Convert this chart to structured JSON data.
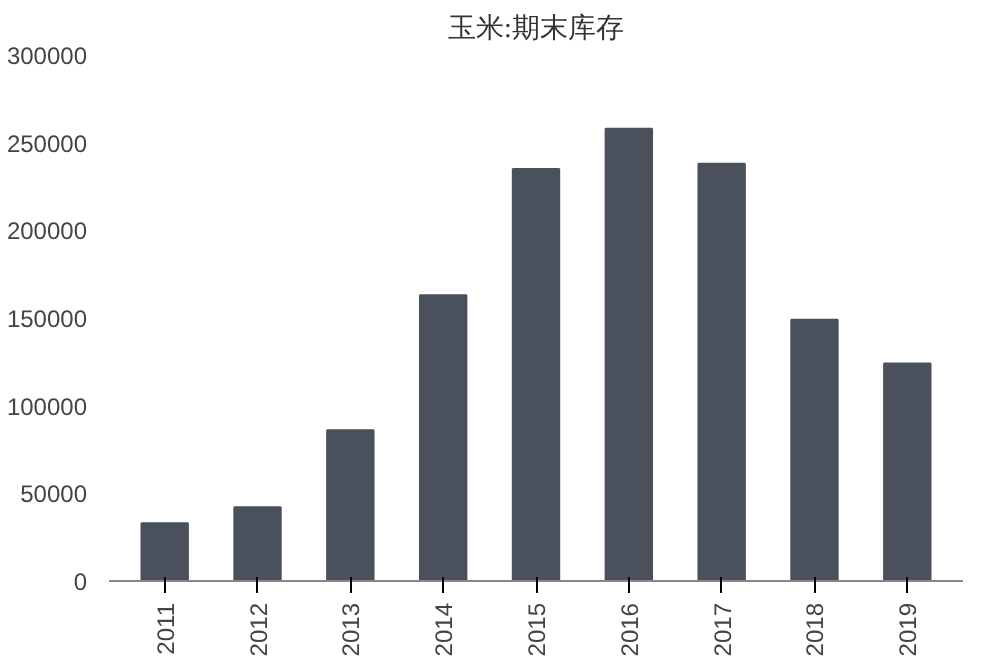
{
  "chart_data": {
    "type": "bar",
    "title": "玉米:期末库存",
    "categories": [
      "2011",
      "2012",
      "2013",
      "2014",
      "2015",
      "2016",
      "2017",
      "2018",
      "2019"
    ],
    "values": [
      33000,
      42000,
      86000,
      163000,
      235000,
      258000,
      238000,
      149000,
      124000
    ],
    "color": "#4a515c",
    "ylim": [
      0,
      300000
    ],
    "yticks": [
      0,
      50000,
      100000,
      150000,
      200000,
      250000,
      300000
    ],
    "grid": false
  }
}
